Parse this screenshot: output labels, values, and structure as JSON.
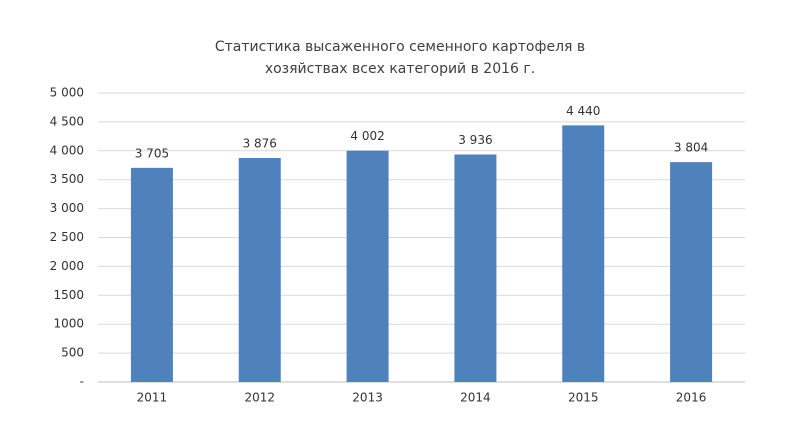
{
  "chart_data": {
    "type": "bar",
    "title": [
      "Статистика высаженного семенного картофеля в",
      "хозяйствах всех категорий в 2016 г."
    ],
    "categories": [
      "2011",
      "2012",
      "2013",
      "2014",
      "2015",
      "2016"
    ],
    "values": [
      3705,
      3876,
      4002,
      3936,
      4440,
      3804
    ],
    "value_labels": [
      "3 705",
      "3 876",
      "4 002",
      "3 936",
      "4 440",
      "3 804"
    ],
    "color": "#4f81bd",
    "ylim": [
      0,
      5000
    ],
    "yticks": [
      {
        "value": 0,
        "label": "-"
      },
      500,
      1000,
      1500,
      {
        "value": 2000,
        "label": "2 000"
      },
      {
        "value": 2500,
        "label": "2 500"
      },
      {
        "value": 3000,
        "label": "3 000"
      },
      {
        "value": 3500,
        "label": "3 500"
      },
      {
        "value": 4000,
        "label": "4 000"
      },
      {
        "value": 4500,
        "label": "4 500"
      },
      {
        "value": 5000,
        "label": "5 000"
      }
    ],
    "grid": true
  }
}
